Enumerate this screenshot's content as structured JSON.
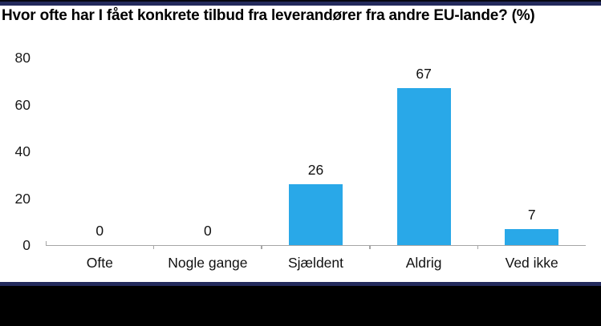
{
  "chart_data": {
    "type": "bar",
    "title": "Hvor ofte har I fået konkrete tilbud fra leverandører fra andre EU-lande? (%)",
    "categories": [
      "Ofte",
      "Nogle gange",
      "Sjældent",
      "Aldrig",
      "Ved ikke"
    ],
    "values": [
      0,
      0,
      26,
      67,
      7
    ],
    "data_labels": [
      "0",
      "0",
      "26",
      "67",
      "7"
    ],
    "xlabel": "",
    "ylabel": "",
    "ylim": [
      0,
      80
    ],
    "yticks": [
      0,
      20,
      40,
      60,
      80
    ],
    "grid": false,
    "legend": null,
    "bar_color": "#29A8E8",
    "axis_color": "#A6A6A6"
  },
  "colors": {
    "top_edge_black": "#06070f",
    "band_navy": "#232A5C",
    "footer_black": "#000000",
    "label_text": "#111111"
  }
}
